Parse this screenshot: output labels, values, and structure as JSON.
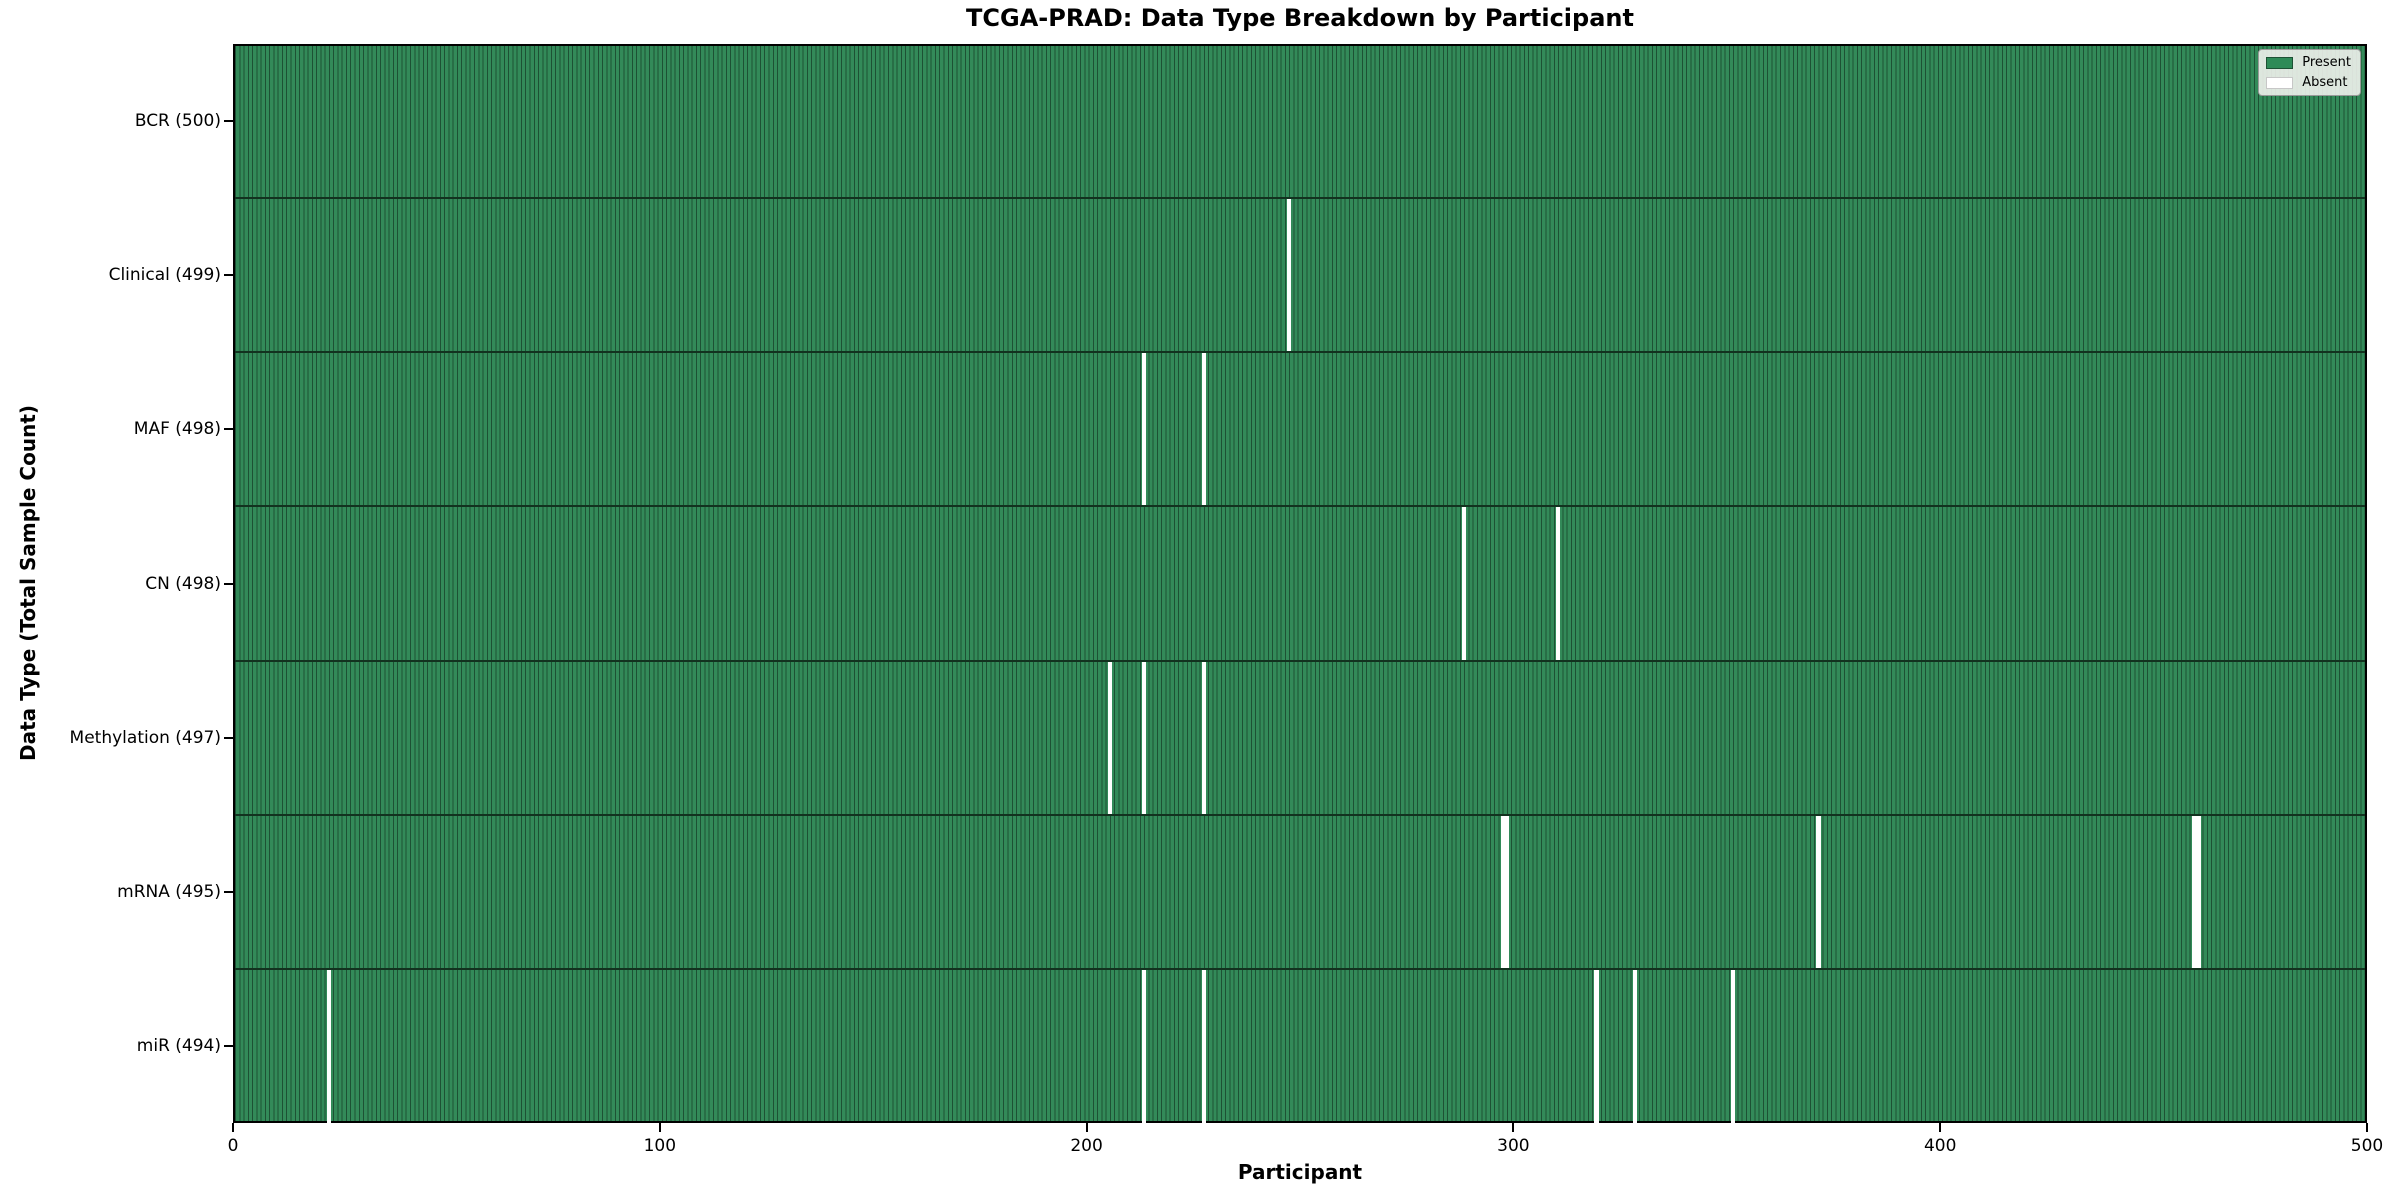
{
  "title": "TCGA-PRAD: Data Type Breakdown by Participant",
  "xlabel": "Participant",
  "ylabel": "Data Type (Total Sample Count)",
  "legend": {
    "present_label": "Present",
    "absent_label": "Absent"
  },
  "colors": {
    "present_fill": "#338a59",
    "present_edge": "#1d5134",
    "absent_fill": "#ffffff",
    "row_separator": "#12321f",
    "legend_background": "#f0f1ec"
  },
  "chart_data": {
    "type": "heatmap",
    "title": "TCGA-PRAD: Data Type Breakdown by Participant",
    "xlabel": "Participant",
    "ylabel": "Data Type (Total Sample Count)",
    "x_range": [
      0,
      500
    ],
    "x_ticks": [
      0,
      100,
      200,
      300,
      400,
      500
    ],
    "n_participants": 500,
    "legend_entries": [
      "Present",
      "Absent"
    ],
    "legend_position": "upper right",
    "rows": [
      {
        "label": "BCR (500)",
        "total": 500,
        "absent_participants": []
      },
      {
        "label": "Clinical (499)",
        "total": 499,
        "absent_participants": [
          247
        ]
      },
      {
        "label": "MAF (498)",
        "total": 498,
        "absent_participants": [
          213,
          227
        ]
      },
      {
        "label": "CN (498)",
        "total": 498,
        "absent_participants": [
          288,
          310
        ]
      },
      {
        "label": "Methylation (497)",
        "total": 497,
        "absent_participants": [
          205,
          213,
          227
        ]
      },
      {
        "label": "mRNA (495)",
        "total": 495,
        "absent_participants": [
          297,
          298,
          371,
          459,
          460
        ]
      },
      {
        "label": "miR (494)",
        "total": 494,
        "absent_participants": [
          22,
          213,
          227,
          319,
          328,
          351
        ]
      }
    ]
  }
}
